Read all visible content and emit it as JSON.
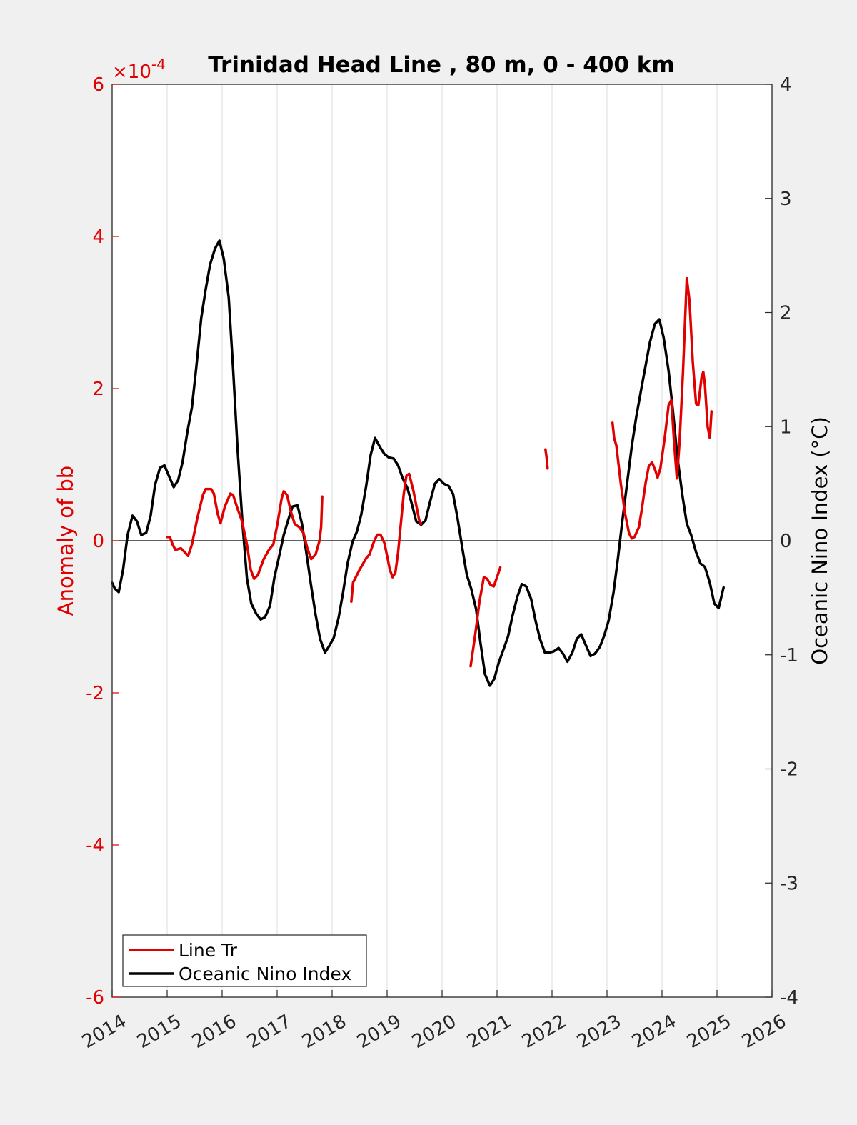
{
  "chart_data": {
    "type": "line",
    "title": "Trinidad Head Line , 80 m, 0 - 400 km",
    "x_axis": {
      "range": [
        2014,
        2026
      ],
      "ticks": [
        "2014",
        "2015",
        "2016",
        "2017",
        "2018",
        "2019",
        "2020",
        "2021",
        "2022",
        "2023",
        "2024",
        "2025",
        "2026"
      ]
    },
    "y_left": {
      "label": "Anomaly of bb",
      "range": [
        -6,
        6
      ],
      "ticks": [
        "-6",
        "-4",
        "-2",
        "0",
        "2",
        "4",
        "6"
      ],
      "multiplier": "×10",
      "exponent": "-4",
      "color": "#e00000"
    },
    "y_right": {
      "label": "Oceanic Nino Index (°C)",
      "range": [
        -4,
        4
      ],
      "ticks": [
        "-4",
        "-3",
        "-2",
        "-1",
        "0",
        "1",
        "2",
        "3",
        "4"
      ],
      "color": "#000000"
    },
    "grid": "vertical",
    "zero_line": true,
    "legend": {
      "placement": "bottom-left",
      "entries": [
        {
          "label": "Line Tr",
          "color": "#e00000"
        },
        {
          "label": "Oceanic Nino Index",
          "color": "#000000"
        }
      ]
    },
    "series": [
      {
        "name": "Line Tr",
        "axis": "left",
        "color": "#e00000",
        "segments": [
          [
            [
              2015.0,
              0.05
            ],
            [
              2015.05,
              0.05
            ],
            [
              2015.1,
              -0.05
            ],
            [
              2015.15,
              -0.12
            ],
            [
              2015.25,
              -0.1
            ],
            [
              2015.32,
              -0.15
            ],
            [
              2015.38,
              -0.2
            ],
            [
              2015.45,
              -0.05
            ],
            [
              2015.55,
              0.3
            ],
            [
              2015.65,
              0.6
            ],
            [
              2015.7,
              0.68
            ],
            [
              2015.8,
              0.68
            ],
            [
              2015.85,
              0.62
            ],
            [
              2015.92,
              0.35
            ],
            [
              2015.97,
              0.23
            ],
            [
              2016.05,
              0.45
            ],
            [
              2016.15,
              0.62
            ],
            [
              2016.2,
              0.6
            ],
            [
              2016.28,
              0.42
            ],
            [
              2016.36,
              0.26
            ],
            [
              2016.45,
              -0.05
            ],
            [
              2016.52,
              -0.38
            ],
            [
              2016.58,
              -0.5
            ],
            [
              2016.65,
              -0.45
            ],
            [
              2016.75,
              -0.25
            ],
            [
              2016.85,
              -0.12
            ],
            [
              2016.93,
              -0.05
            ],
            [
              2017.0,
              0.2
            ],
            [
              2017.08,
              0.55
            ],
            [
              2017.12,
              0.65
            ],
            [
              2017.18,
              0.6
            ],
            [
              2017.25,
              0.38
            ],
            [
              2017.32,
              0.22
            ],
            [
              2017.4,
              0.18
            ],
            [
              2017.48,
              0.1
            ],
            [
              2017.55,
              -0.1
            ],
            [
              2017.62,
              -0.24
            ],
            [
              2017.7,
              -0.18
            ],
            [
              2017.77,
              0.0
            ],
            [
              2017.8,
              0.18
            ],
            [
              2017.82,
              0.58
            ]
          ],
          [
            [
              2018.35,
              -0.8
            ],
            [
              2018.38,
              -0.55
            ],
            [
              2018.5,
              -0.38
            ],
            [
              2018.62,
              -0.23
            ],
            [
              2018.68,
              -0.18
            ],
            [
              2018.75,
              -0.03
            ],
            [
              2018.82,
              0.08
            ],
            [
              2018.88,
              0.08
            ],
            [
              2018.95,
              -0.03
            ],
            [
              2019.0,
              -0.2
            ],
            [
              2019.05,
              -0.38
            ],
            [
              2019.1,
              -0.48
            ],
            [
              2019.15,
              -0.42
            ],
            [
              2019.2,
              -0.15
            ],
            [
              2019.3,
              0.6
            ],
            [
              2019.35,
              0.85
            ],
            [
              2019.4,
              0.88
            ],
            [
              2019.48,
              0.65
            ],
            [
              2019.58,
              0.28
            ],
            [
              2019.62,
              0.22
            ]
          ],
          [
            [
              2020.52,
              -1.65
            ],
            [
              2020.6,
              -1.25
            ],
            [
              2020.68,
              -0.8
            ],
            [
              2020.76,
              -0.48
            ],
            [
              2020.82,
              -0.5
            ],
            [
              2020.88,
              -0.58
            ],
            [
              2020.94,
              -0.6
            ],
            [
              2021.0,
              -0.48
            ],
            [
              2021.06,
              -0.35
            ]
          ],
          [
            [
              2021.88,
              1.2
            ],
            [
              2021.9,
              1.1
            ],
            [
              2021.92,
              0.95
            ]
          ],
          [
            [
              2023.1,
              1.55
            ],
            [
              2023.13,
              1.35
            ],
            [
              2023.17,
              1.25
            ],
            [
              2023.25,
              0.75
            ],
            [
              2023.33,
              0.35
            ],
            [
              2023.4,
              0.1
            ],
            [
              2023.45,
              0.03
            ],
            [
              2023.5,
              0.05
            ],
            [
              2023.58,
              0.18
            ],
            [
              2023.63,
              0.4
            ],
            [
              2023.7,
              0.75
            ],
            [
              2023.76,
              0.98
            ],
            [
              2023.82,
              1.03
            ],
            [
              2023.88,
              0.92
            ],
            [
              2023.92,
              0.83
            ],
            [
              2023.97,
              0.95
            ],
            [
              2024.05,
              1.35
            ],
            [
              2024.12,
              1.78
            ],
            [
              2024.17,
              1.85
            ],
            [
              2024.22,
              1.3
            ],
            [
              2024.27,
              0.82
            ],
            [
              2024.32,
              1.3
            ],
            [
              2024.38,
              2.2
            ],
            [
              2024.45,
              3.45
            ],
            [
              2024.5,
              3.15
            ],
            [
              2024.56,
              2.35
            ],
            [
              2024.62,
              1.8
            ],
            [
              2024.66,
              1.78
            ],
            [
              2024.72,
              2.15
            ],
            [
              2024.75,
              2.22
            ],
            [
              2024.78,
              2.05
            ],
            [
              2024.83,
              1.5
            ],
            [
              2024.87,
              1.35
            ],
            [
              2024.9,
              1.7
            ]
          ]
        ]
      },
      {
        "name": "Oceanic Nino Index",
        "axis": "right",
        "color": "#000000",
        "segments": [
          [
            [
              2014.0,
              -0.37
            ],
            [
              2014.05,
              -0.42
            ],
            [
              2014.12,
              -0.45
            ],
            [
              2014.2,
              -0.25
            ],
            [
              2014.28,
              0.05
            ],
            [
              2014.37,
              0.22
            ],
            [
              2014.45,
              0.17
            ],
            [
              2014.53,
              0.05
            ],
            [
              2014.62,
              0.07
            ],
            [
              2014.7,
              0.22
            ],
            [
              2014.78,
              0.49
            ],
            [
              2014.87,
              0.64
            ],
            [
              2014.95,
              0.66
            ],
            [
              2015.03,
              0.57
            ],
            [
              2015.12,
              0.47
            ],
            [
              2015.2,
              0.53
            ],
            [
              2015.28,
              0.69
            ],
            [
              2015.37,
              0.96
            ],
            [
              2015.45,
              1.17
            ],
            [
              2015.53,
              1.52
            ],
            [
              2015.62,
              1.95
            ],
            [
              2015.7,
              2.2
            ],
            [
              2015.78,
              2.42
            ],
            [
              2015.87,
              2.56
            ],
            [
              2015.95,
              2.63
            ],
            [
              2016.03,
              2.47
            ],
            [
              2016.12,
              2.13
            ],
            [
              2016.2,
              1.5
            ],
            [
              2016.28,
              0.8
            ],
            [
              2016.37,
              0.15
            ],
            [
              2016.45,
              -0.33
            ],
            [
              2016.53,
              -0.55
            ],
            [
              2016.62,
              -0.64
            ],
            [
              2016.7,
              -0.69
            ],
            [
              2016.78,
              -0.67
            ],
            [
              2016.87,
              -0.57
            ],
            [
              2016.95,
              -0.32
            ],
            [
              2017.03,
              -0.15
            ],
            [
              2017.12,
              0.05
            ],
            [
              2017.2,
              0.18
            ],
            [
              2017.28,
              0.3
            ],
            [
              2017.37,
              0.31
            ],
            [
              2017.45,
              0.15
            ],
            [
              2017.53,
              -0.1
            ],
            [
              2017.62,
              -0.4
            ],
            [
              2017.7,
              -0.65
            ],
            [
              2017.78,
              -0.86
            ],
            [
              2017.87,
              -0.98
            ],
            [
              2017.95,
              -0.92
            ],
            [
              2018.03,
              -0.85
            ],
            [
              2018.12,
              -0.67
            ],
            [
              2018.2,
              -0.45
            ],
            [
              2018.28,
              -0.2
            ],
            [
              2018.37,
              -0.01
            ],
            [
              2018.45,
              0.08
            ],
            [
              2018.53,
              0.23
            ],
            [
              2018.62,
              0.48
            ],
            [
              2018.7,
              0.75
            ],
            [
              2018.78,
              0.9
            ],
            [
              2018.87,
              0.82
            ],
            [
              2018.95,
              0.76
            ],
            [
              2019.03,
              0.73
            ],
            [
              2019.12,
              0.72
            ],
            [
              2019.2,
              0.66
            ],
            [
              2019.28,
              0.55
            ],
            [
              2019.37,
              0.46
            ],
            [
              2019.45,
              0.32
            ],
            [
              2019.53,
              0.17
            ],
            [
              2019.62,
              0.14
            ],
            [
              2019.7,
              0.18
            ],
            [
              2019.78,
              0.34
            ],
            [
              2019.87,
              0.5
            ],
            [
              2019.95,
              0.54
            ],
            [
              2020.03,
              0.5
            ],
            [
              2020.12,
              0.48
            ],
            [
              2020.2,
              0.41
            ],
            [
              2020.28,
              0.2
            ],
            [
              2020.37,
              -0.07
            ],
            [
              2020.45,
              -0.3
            ],
            [
              2020.53,
              -0.42
            ],
            [
              2020.62,
              -0.6
            ],
            [
              2020.7,
              -0.9
            ],
            [
              2020.78,
              -1.17
            ],
            [
              2020.87,
              -1.27
            ],
            [
              2020.95,
              -1.21
            ],
            [
              2021.03,
              -1.07
            ],
            [
              2021.12,
              -0.95
            ],
            [
              2021.2,
              -0.84
            ],
            [
              2021.28,
              -0.66
            ],
            [
              2021.37,
              -0.49
            ],
            [
              2021.45,
              -0.38
            ],
            [
              2021.53,
              -0.4
            ],
            [
              2021.62,
              -0.51
            ],
            [
              2021.7,
              -0.7
            ],
            [
              2021.78,
              -0.86
            ],
            [
              2021.87,
              -0.98
            ],
            [
              2021.95,
              -0.98
            ],
            [
              2022.03,
              -0.97
            ],
            [
              2022.12,
              -0.94
            ],
            [
              2022.2,
              -0.99
            ],
            [
              2022.28,
              -1.06
            ],
            [
              2022.37,
              -0.98
            ],
            [
              2022.45,
              -0.86
            ],
            [
              2022.53,
              -0.82
            ],
            [
              2022.62,
              -0.92
            ],
            [
              2022.7,
              -1.01
            ],
            [
              2022.78,
              -0.99
            ],
            [
              2022.87,
              -0.93
            ],
            [
              2022.95,
              -0.83
            ],
            [
              2023.03,
              -0.7
            ],
            [
              2023.12,
              -0.45
            ],
            [
              2023.2,
              -0.15
            ],
            [
              2023.28,
              0.18
            ],
            [
              2023.37,
              0.52
            ],
            [
              2023.45,
              0.83
            ],
            [
              2023.53,
              1.08
            ],
            [
              2023.62,
              1.32
            ],
            [
              2023.7,
              1.53
            ],
            [
              2023.78,
              1.74
            ],
            [
              2023.87,
              1.9
            ],
            [
              2023.95,
              1.94
            ],
            [
              2024.03,
              1.78
            ],
            [
              2024.12,
              1.49
            ],
            [
              2024.2,
              1.13
            ],
            [
              2024.28,
              0.73
            ],
            [
              2024.37,
              0.4
            ],
            [
              2024.45,
              0.15
            ],
            [
              2024.53,
              0.05
            ],
            [
              2024.62,
              -0.1
            ],
            [
              2024.7,
              -0.2
            ],
            [
              2024.78,
              -0.23
            ],
            [
              2024.87,
              -0.37
            ],
            [
              2024.95,
              -0.55
            ],
            [
              2025.03,
              -0.59
            ],
            [
              2025.12,
              -0.41
            ]
          ]
        ]
      }
    ]
  }
}
